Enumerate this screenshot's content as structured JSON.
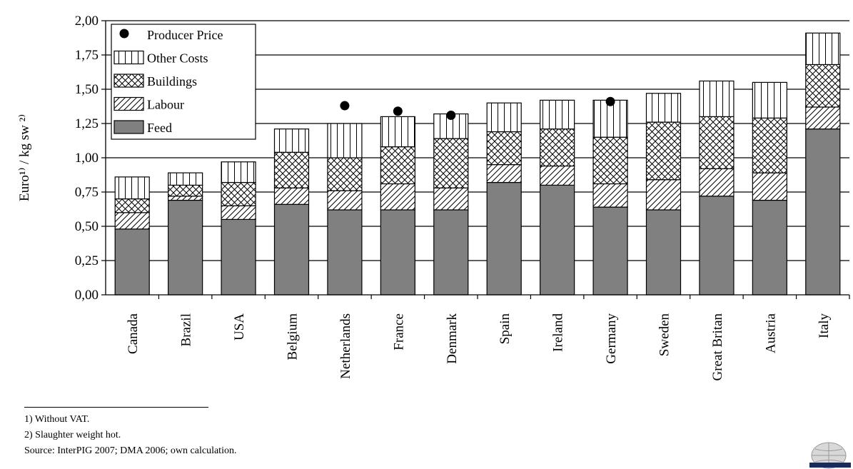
{
  "chart_data": {
    "type": "bar",
    "stacked": true,
    "ylabel": "Euro¹⁾ / kg sw ²⁾",
    "ylim": [
      0,
      2
    ],
    "y_ticks": [
      "0,00",
      "0,25",
      "0,50",
      "0,75",
      "1,00",
      "1,25",
      "1,50",
      "1,75",
      "2,00"
    ],
    "grid": "horizontal",
    "legend_position": "top-left",
    "categories": [
      "Canada",
      "Brazil",
      "USA",
      "Belgium",
      "Netherlands",
      "France",
      "Denmark",
      "Spain",
      "Ireland",
      "Germany",
      "Sweden",
      "Great Britan",
      "Austria",
      "Italy"
    ],
    "series": [
      {
        "name": "Feed",
        "values": [
          0.48,
          0.69,
          0.55,
          0.66,
          0.62,
          0.62,
          0.62,
          0.82,
          0.8,
          0.64,
          0.62,
          0.72,
          0.69,
          1.21
        ]
      },
      {
        "name": "Labour",
        "values": [
          0.12,
          0.03,
          0.1,
          0.12,
          0.14,
          0.19,
          0.16,
          0.13,
          0.14,
          0.17,
          0.22,
          0.2,
          0.2,
          0.16
        ]
      },
      {
        "name": "Buildings",
        "values": [
          0.1,
          0.08,
          0.17,
          0.26,
          0.24,
          0.27,
          0.36,
          0.24,
          0.27,
          0.34,
          0.42,
          0.38,
          0.4,
          0.31
        ]
      },
      {
        "name": "Other Costs",
        "values": [
          0.16,
          0.09,
          0.15,
          0.17,
          0.25,
          0.22,
          0.18,
          0.21,
          0.21,
          0.27,
          0.21,
          0.26,
          0.26,
          0.23
        ]
      }
    ],
    "producer_price": {
      "name": "Producer Price",
      "values": [
        null,
        null,
        null,
        null,
        1.38,
        1.34,
        1.31,
        null,
        null,
        1.41,
        null,
        null,
        null,
        null
      ]
    },
    "legend": [
      "Producer Price",
      "Other Costs",
      "Buildings",
      "Labour",
      "Feed"
    ]
  },
  "footnotes": [
    "1) Without VAT.",
    "2) Slaughter weight hot.",
    "Source: InterPIG 2007; DMA 2006; own calculation."
  ],
  "colors": {
    "feed": "#808080",
    "axis": "#000000",
    "background": "#ffffff"
  }
}
